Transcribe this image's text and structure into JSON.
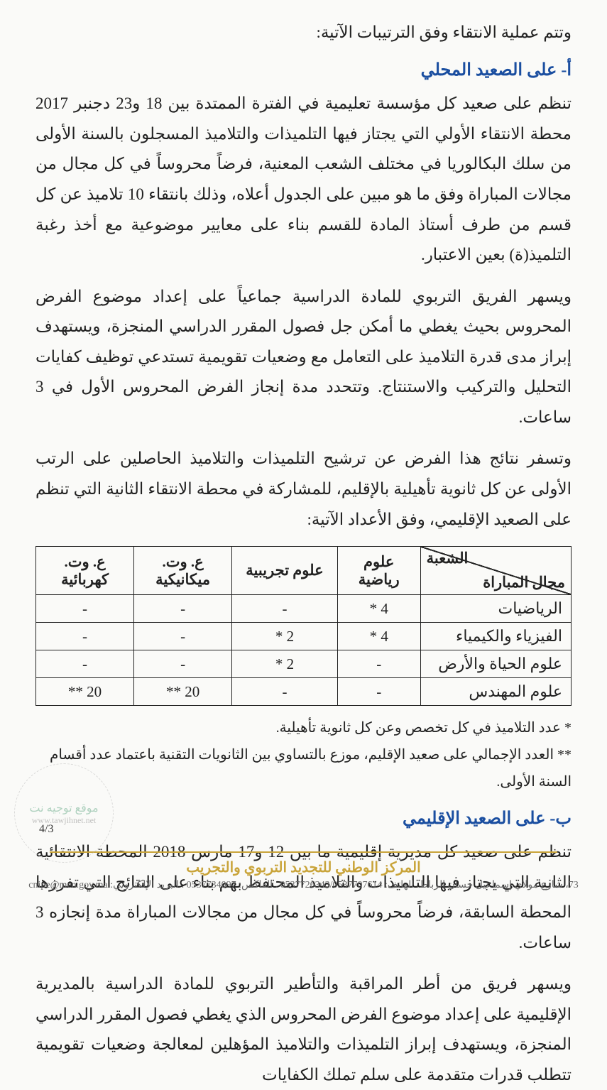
{
  "intro": "وتتم عملية الانتقاء وفق الترتيبات الآتية:",
  "section_a": {
    "heading": "أ- على الصعيد المحلي",
    "p1": "تنظم على صعيد كل مؤسسة تعليمية في الفترة الممتدة بين 18 و23 دجنبر 2017 محطة الانتقاء الأولي التي يجتاز فيها التلميذات والتلاميذ المسجلون بالسنة الأولى من سلك البكالوريا في مختلف الشعب المعنية، فرضاً محروساً في كل مجال من مجالات المباراة وفق ما هو مبين على الجدول أعلاه، وذلك بانتقاء 10 تلاميذ عن كل قسم من طرف أستاذ المادة للقسم بناء على معايير موضوعية مع أخذ رغبة التلميذ(ة) بعين الاعتبار.",
    "p2": "ويسهر الفريق التربوي للمادة الدراسية جماعياً على إعداد موضوع الفرض المحروس بحيث يغطي ما أمكن جل فصول المقرر الدراسي المنجزة، ويستهدف إبراز مدى قدرة التلاميذ على التعامل مع وضعيات تقويمية تستدعي توظيف كفايات التحليل والتركيب والاستنتاج. وتتحدد مدة إنجاز الفرض المحروس الأول في 3 ساعات.",
    "p3": "وتسفر نتائج هذا الفرض عن ترشيح التلميذات والتلاميذ الحاصلين على الرتب الأولى عن كل ثانوية تأهيلية بالإقليم، للمشاركة في محطة الانتقاء الثانية التي تنظم على الصعيد الإقليمي، وفق الأعداد الآتية:"
  },
  "table": {
    "diag_top": "الشعبة",
    "diag_bottom": "مجال المباراة",
    "columns": [
      "علوم رياضية",
      "علوم تجريبية",
      "ع. وت. ميكانيكية",
      "ع. وت. كهربائية"
    ],
    "rows": [
      {
        "label": "الرياضيات",
        "cells": [
          "4 *",
          "-",
          "-",
          "-"
        ]
      },
      {
        "label": "الفيزياء والكيمياء",
        "cells": [
          "4 *",
          "2 *",
          "-",
          "-"
        ]
      },
      {
        "label": "علوم الحياة والأرض",
        "cells": [
          "-",
          "2 *",
          "-",
          "-"
        ]
      },
      {
        "label": "علوم المهندس",
        "cells": [
          "-",
          "-",
          "20 **",
          "20 **"
        ]
      }
    ],
    "note1": "* عدد التلاميذ في كل تخصص وعن كل ثانوية تأهيلية.",
    "note2": "** العدد الإجمالي على صعيد الإقليم، موزع بالتساوي بين الثانويات التقنية باعتماد عدد أقسام السنة الأولى.",
    "col_widths": [
      "200px",
      "110px",
      "140px",
      "130px",
      "130px"
    ],
    "border_color": "#222222"
  },
  "section_b": {
    "heading": "ب- على الصعيد الإقليمي",
    "p1": "تنظم على صعيد كل مديرية إقليمية ما بين 12 و17 مارس 2018 المحطة الانتقائية الثانية التي يجتاز فيها التلميذات والتلاميذ المحتفظ بهم بناء على النتائج التي تفرزها المحطة السابقة، فرضاً محروساً في كل مجال من مجالات المباراة مدة إنجازه 3 ساعات.",
    "p2": "ويسهر فريق من أطر المراقبة والتأطير التربوي للمادة الدراسية بالمديرية الإقليمية على إعداد موضوع الفرض المحروس الذي يغطي فصول المقرر الدراسي المنجزة، ويستهدف إبراز التلميذات والتلاميذ المؤهلين لمعالجة وضعيات تقويمية تتطلب قدرات متقدمة على سلم تملك الكفايات"
  },
  "page_number": "4/3",
  "footer": {
    "title": "المركز الوطني للتجديد التربوي والتجريب",
    "contact": "73، شارع مولاي إسماعيل حسان الرباط. الهاتف: 0537726343/0537707614 . الفاكس: 0537734097 . البريد الإلكتروني: cnipe@men.gov.ma"
  },
  "watermark": {
    "ar": "موقع توجيه نت",
    "url": "www.tawjihnet.net"
  },
  "colors": {
    "heading": "#1a4ea0",
    "accent": "#c9a43a",
    "text": "#222222",
    "bg": "#fafaf8"
  }
}
